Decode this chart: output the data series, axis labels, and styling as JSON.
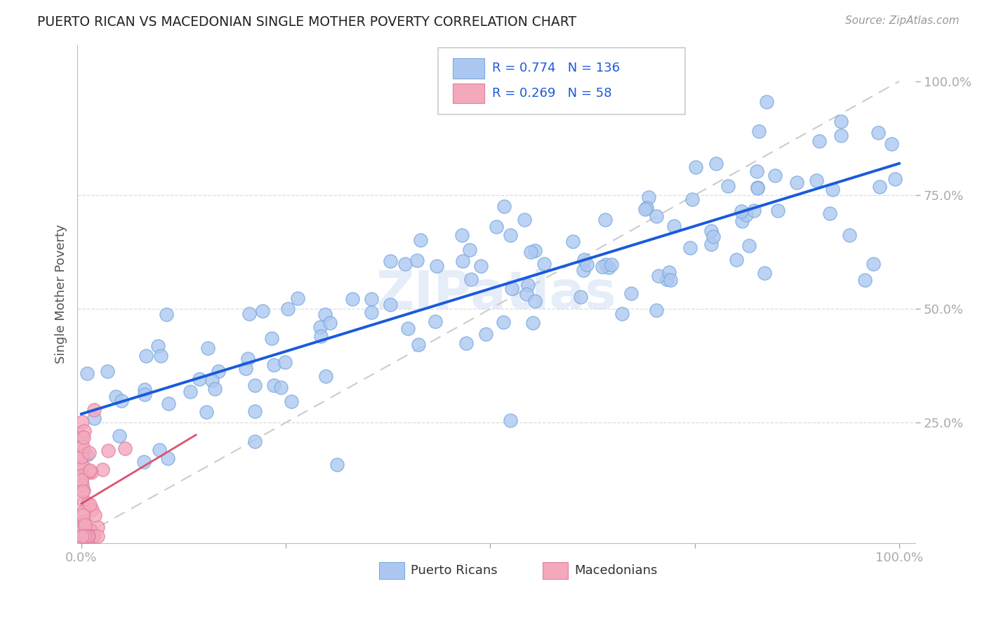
{
  "title": "PUERTO RICAN VS MACEDONIAN SINGLE MOTHER POVERTY CORRELATION CHART",
  "source": "Source: ZipAtlas.com",
  "ylabel": "Single Mother Poverty",
  "watermark": "ZIPatlas",
  "legend_labels": [
    "Puerto Ricans",
    "Macedonians"
  ],
  "blue_R": "0.774",
  "blue_N": "136",
  "pink_R": "0.269",
  "pink_N": "58",
  "blue_color": "#adc8f0",
  "pink_color": "#f4a8bc",
  "blue_edge": "#7aaae0",
  "pink_edge": "#e080a0",
  "line_blue": "#1a5adc",
  "line_pink": "#e05070",
  "diagonal_color": "#cccccc",
  "grid_color": "#dddddd",
  "tick_label_color": "#3366cc",
  "title_color": "#222222",
  "seed": 99
}
